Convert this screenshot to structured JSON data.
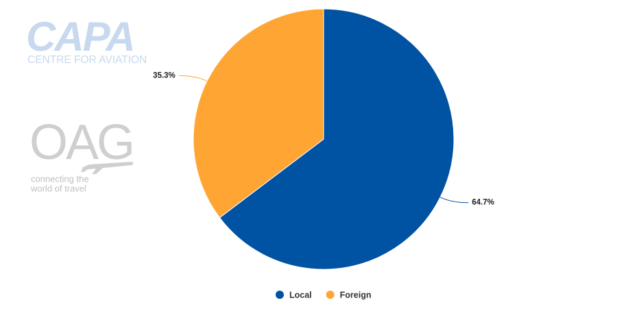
{
  "chart_data": {
    "type": "pie",
    "categories": [
      "Local",
      "Foreign"
    ],
    "values": [
      64.7,
      35.3
    ],
    "value_labels": [
      "64.7%",
      "35.3%"
    ],
    "colors": [
      "#0052a3",
      "#ffa533"
    ],
    "legend": "bottom",
    "logos": [
      {
        "title": "CAPA",
        "lines": [
          "CENTRE FOR AVIATION"
        ]
      },
      {
        "title": "OAG",
        "lines": [
          "connecting the",
          "world of travel"
        ]
      }
    ]
  }
}
